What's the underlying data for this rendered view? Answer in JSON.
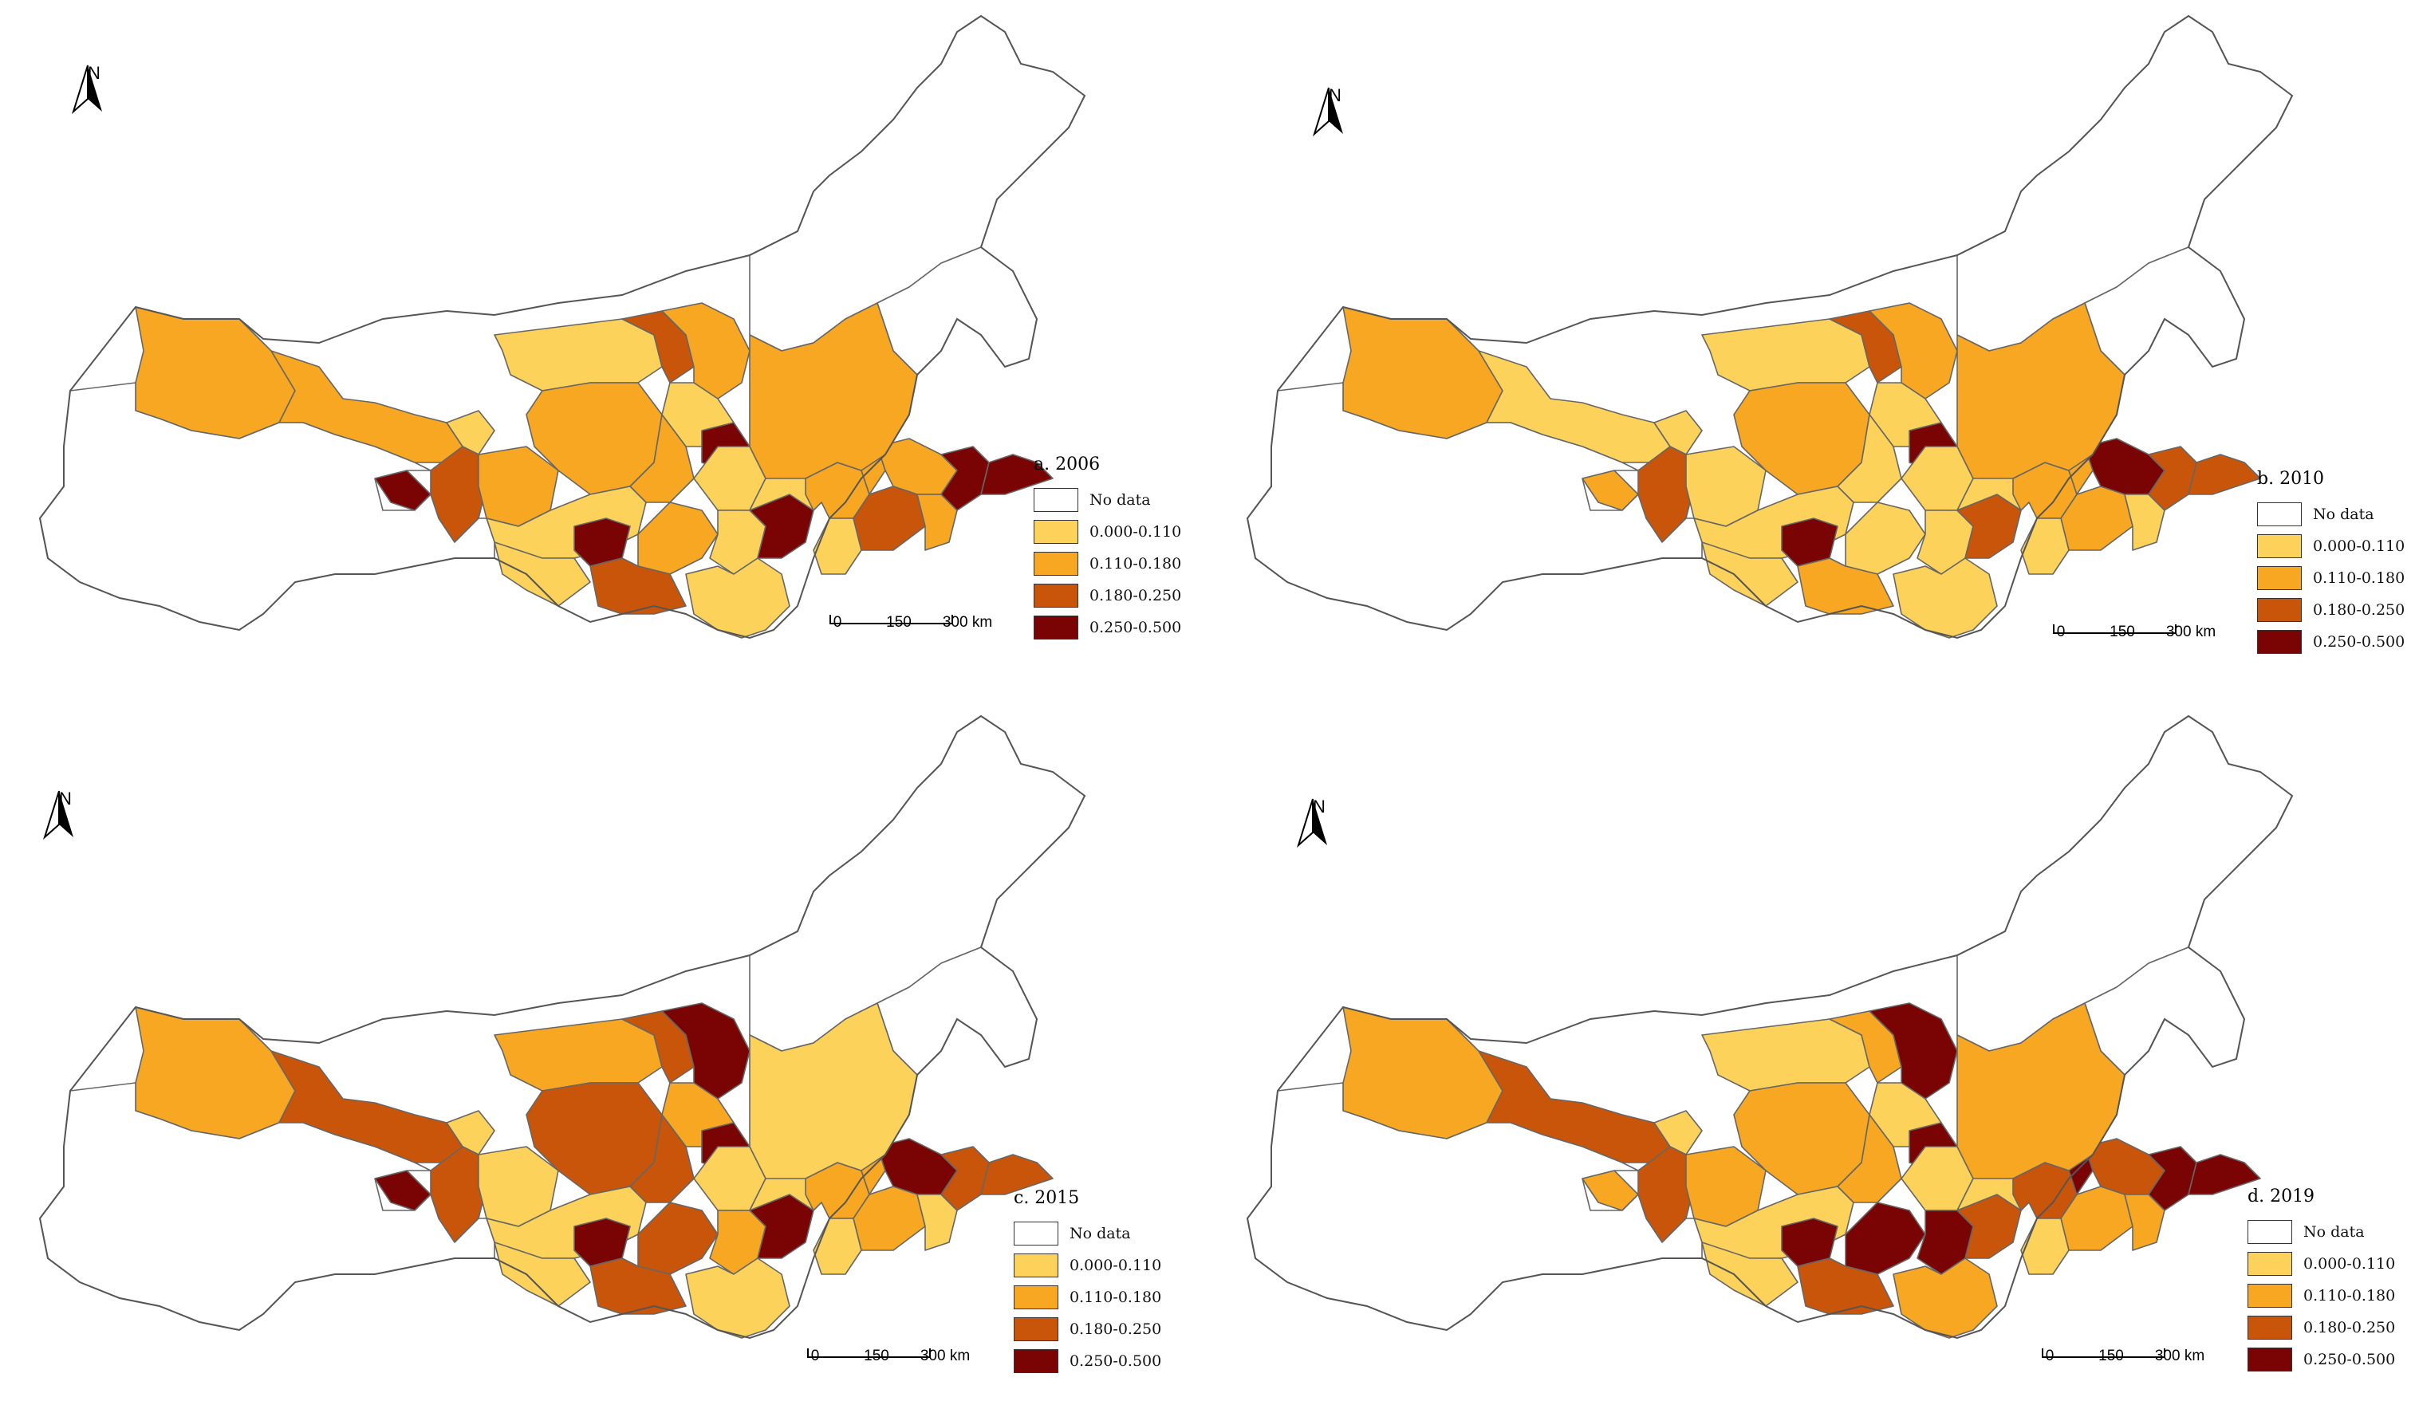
{
  "north_label": "N",
  "legend": {
    "classes": [
      {
        "label": "No data",
        "color": "#ffffff"
      },
      {
        "label": "0.000-0.110",
        "color": "#fcd25a"
      },
      {
        "label": "0.110-0.180",
        "color": "#f7a722"
      },
      {
        "label": "0.180-0.250",
        "color": "#c9550b"
      },
      {
        "label": "0.250-0.500",
        "color": "#7a0404"
      }
    ]
  },
  "scale_bar": {
    "ticks": [
      "0",
      "150",
      "300 km"
    ]
  },
  "panels": [
    {
      "title": "a. 2006"
    },
    {
      "title": "b. 2010"
    },
    {
      "title": "c. 2015"
    },
    {
      "title": "d. 2019"
    }
  ]
}
